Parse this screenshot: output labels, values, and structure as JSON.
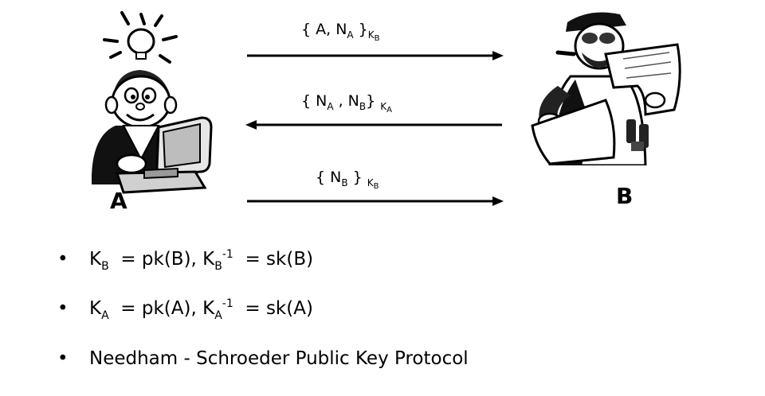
{
  "parties": {
    "a": "A",
    "b": "B"
  },
  "messages": [
    {
      "open": "{ A, N",
      "n_sub": "A",
      "close": " }",
      "key": "K",
      "key_sub": "B",
      "direction": "A-to-B"
    },
    {
      "open": "{ N",
      "n1_sub": "A",
      "mid": " , N",
      "n2_sub": "B",
      "close": "} ",
      "key": "K",
      "key_sub": "A",
      "direction": "B-to-A"
    },
    {
      "open": "{ N",
      "n_sub": "B",
      "close": " } ",
      "key": "K",
      "key_sub": "B",
      "direction": "A-to-B"
    }
  ],
  "bullets": [
    {
      "symbol": "•",
      "k": "K",
      "k_sub": "B",
      "eq1": "  = pk(B), K",
      "k2_sub": "B",
      "sup": "-1",
      "eq2": "  = sk(B)"
    },
    {
      "symbol": "•",
      "k": "K",
      "k_sub": "A",
      "eq1": "  = pk(A), K",
      "k2_sub": "A",
      "sup": "-1",
      "eq2": "  = sk(A)"
    },
    {
      "symbol": "•",
      "text": "Needham - Schroeder Public Key Protocol"
    }
  ],
  "icons": {
    "left": "person-at-computer-with-idea-icon",
    "right": "person-reading-document-icon"
  }
}
